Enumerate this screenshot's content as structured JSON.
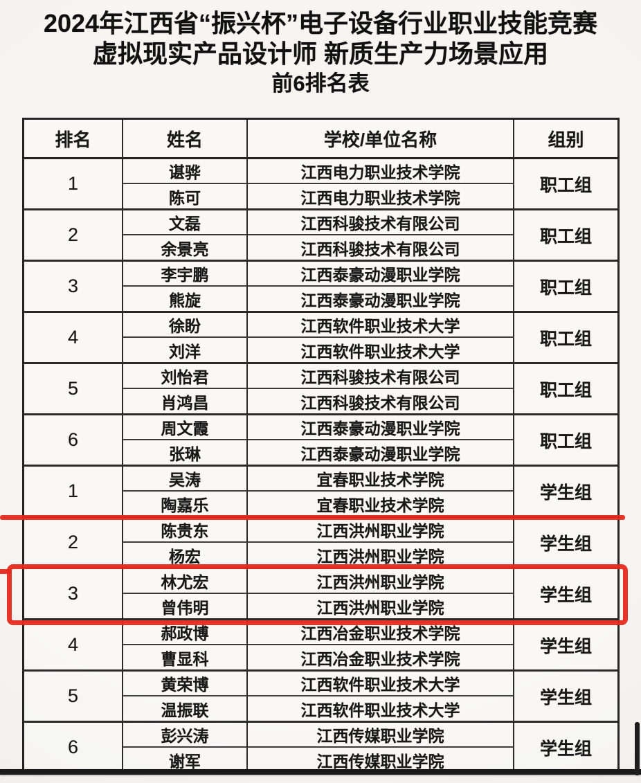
{
  "title": {
    "line1": "2024年江西省“振兴杯”电子设备行业职业技能竞赛",
    "line2": "虚拟现实产品设计师 新质生产力场景应用",
    "line3": "前6排名表"
  },
  "table": {
    "headers": [
      "排名",
      "姓名",
      "学校/单位名称",
      "组别"
    ],
    "rows": [
      {
        "rank": "1",
        "members": [
          {
            "name": "谌骅",
            "org": "江西电力职业技术学院"
          },
          {
            "name": "陈可",
            "org": "江西电力职业技术学院"
          }
        ],
        "group": "职工组",
        "highlight": "none"
      },
      {
        "rank": "2",
        "members": [
          {
            "name": "文磊",
            "org": "江西科骏技术有限公司"
          },
          {
            "name": "余景亮",
            "org": "江西科骏技术有限公司"
          }
        ],
        "group": "职工组",
        "highlight": "none"
      },
      {
        "rank": "3",
        "members": [
          {
            "name": "李宇鹏",
            "org": "江西泰豪动漫职业学院"
          },
          {
            "name": "熊旋",
            "org": "江西泰豪动漫职业学院"
          }
        ],
        "group": "职工组",
        "highlight": "none"
      },
      {
        "rank": "4",
        "members": [
          {
            "name": "徐盼",
            "org": "江西软件职业技术大学"
          },
          {
            "name": "刘洋",
            "org": "江西软件职业技术大学"
          }
        ],
        "group": "职工组",
        "highlight": "none"
      },
      {
        "rank": "5",
        "members": [
          {
            "name": "刘怡君",
            "org": "江西科骏技术有限公司"
          },
          {
            "name": "肖鸿昌",
            "org": "江西科骏技术有限公司"
          }
        ],
        "group": "职工组",
        "highlight": "none"
      },
      {
        "rank": "6",
        "members": [
          {
            "name": "周文霞",
            "org": "江西泰豪动漫职业学院"
          },
          {
            "name": "张琳",
            "org": "江西泰豪动漫职业学院"
          }
        ],
        "group": "职工组",
        "highlight": "none"
      },
      {
        "rank": "1",
        "members": [
          {
            "name": "吴涛",
            "org": "宜春职业技术学院"
          },
          {
            "name": "陶嘉乐",
            "org": "宜春职业技术学院"
          }
        ],
        "group": "学生组",
        "highlight": "red-line-below"
      },
      {
        "rank": "2",
        "members": [
          {
            "name": "陈贵东",
            "org": "江西洪州职业学院"
          },
          {
            "name": "杨宏",
            "org": "江西洪州职业学院"
          }
        ],
        "group": "学生组",
        "highlight": "none"
      },
      {
        "rank": "3",
        "members": [
          {
            "name": "林尤宏",
            "org": "江西洪州职业学院"
          },
          {
            "name": "曾伟明",
            "org": "江西洪州职业学院"
          }
        ],
        "group": "学生组",
        "highlight": "red-box"
      },
      {
        "rank": "4",
        "members": [
          {
            "name": "郝政博",
            "org": "江西冶金职业技术学院"
          },
          {
            "name": "曹显科",
            "org": "江西冶金职业技术学院"
          }
        ],
        "group": "学生组",
        "highlight": "none"
      },
      {
        "rank": "5",
        "members": [
          {
            "name": "黄荣博",
            "org": "江西软件职业技术大学"
          },
          {
            "name": "温振联",
            "org": "江西软件职业技术大学"
          }
        ],
        "group": "学生组",
        "highlight": "none"
      },
      {
        "rank": "6",
        "members": [
          {
            "name": "彭兴涛",
            "org": "江西传媒职业学院"
          },
          {
            "name": "谢军",
            "org": "江西传媒职业学院"
          }
        ],
        "group": "学生组",
        "highlight": "none"
      }
    ]
  },
  "annotations": {
    "red_line": {
      "color": "#e5291c",
      "marks": "horizontal pen line above 学生组 rank 2 row"
    },
    "red_box": {
      "color": "#e5291c",
      "marks": "pen rectangle around 学生组 rank 3 row"
    }
  },
  "colors": {
    "annotation_red": "#e5291c",
    "table_border": "#242424",
    "text": "#181818",
    "paper": "#f6f5f2"
  }
}
